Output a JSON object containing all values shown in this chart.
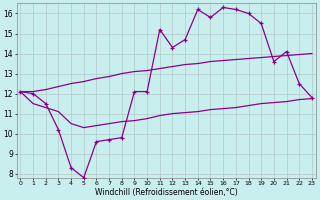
{
  "x": [
    0,
    1,
    2,
    3,
    4,
    5,
    6,
    7,
    8,
    9,
    10,
    11,
    12,
    13,
    14,
    15,
    16,
    17,
    18,
    19,
    20,
    21,
    22,
    23
  ],
  "line_main": [
    12.1,
    12.0,
    11.5,
    10.2,
    8.3,
    7.8,
    9.6,
    9.7,
    9.8,
    12.1,
    12.1,
    15.2,
    14.3,
    14.7,
    16.2,
    15.8,
    16.3,
    16.2,
    16.0,
    15.5,
    13.6,
    14.1,
    12.5,
    11.8
  ],
  "line_upper": [
    12.1,
    12.1,
    12.2,
    12.35,
    12.5,
    12.6,
    12.75,
    12.85,
    13.0,
    13.1,
    13.15,
    13.25,
    13.35,
    13.45,
    13.5,
    13.6,
    13.65,
    13.7,
    13.75,
    13.8,
    13.85,
    13.9,
    13.95,
    14.0
  ],
  "line_lower": [
    12.1,
    11.5,
    11.3,
    11.1,
    10.5,
    10.3,
    10.4,
    10.5,
    10.6,
    10.65,
    10.75,
    10.9,
    11.0,
    11.05,
    11.1,
    11.2,
    11.25,
    11.3,
    11.4,
    11.5,
    11.55,
    11.6,
    11.7,
    11.75
  ],
  "ylim": [
    7.8,
    16.5
  ],
  "xlim": [
    -0.3,
    23.3
  ],
  "yticks": [
    8,
    9,
    10,
    11,
    12,
    13,
    14,
    15,
    16
  ],
  "xticks": [
    0,
    1,
    2,
    3,
    4,
    5,
    6,
    7,
    8,
    9,
    10,
    11,
    12,
    13,
    14,
    15,
    16,
    17,
    18,
    19,
    20,
    21,
    22,
    23
  ],
  "xlabel": "Windchill (Refroidissement éolien,°C)",
  "color_main": "#8b008b",
  "color_bands": "#8b008b",
  "bg_color": "#c8eeee",
  "grid_color": "#b0c8c8"
}
